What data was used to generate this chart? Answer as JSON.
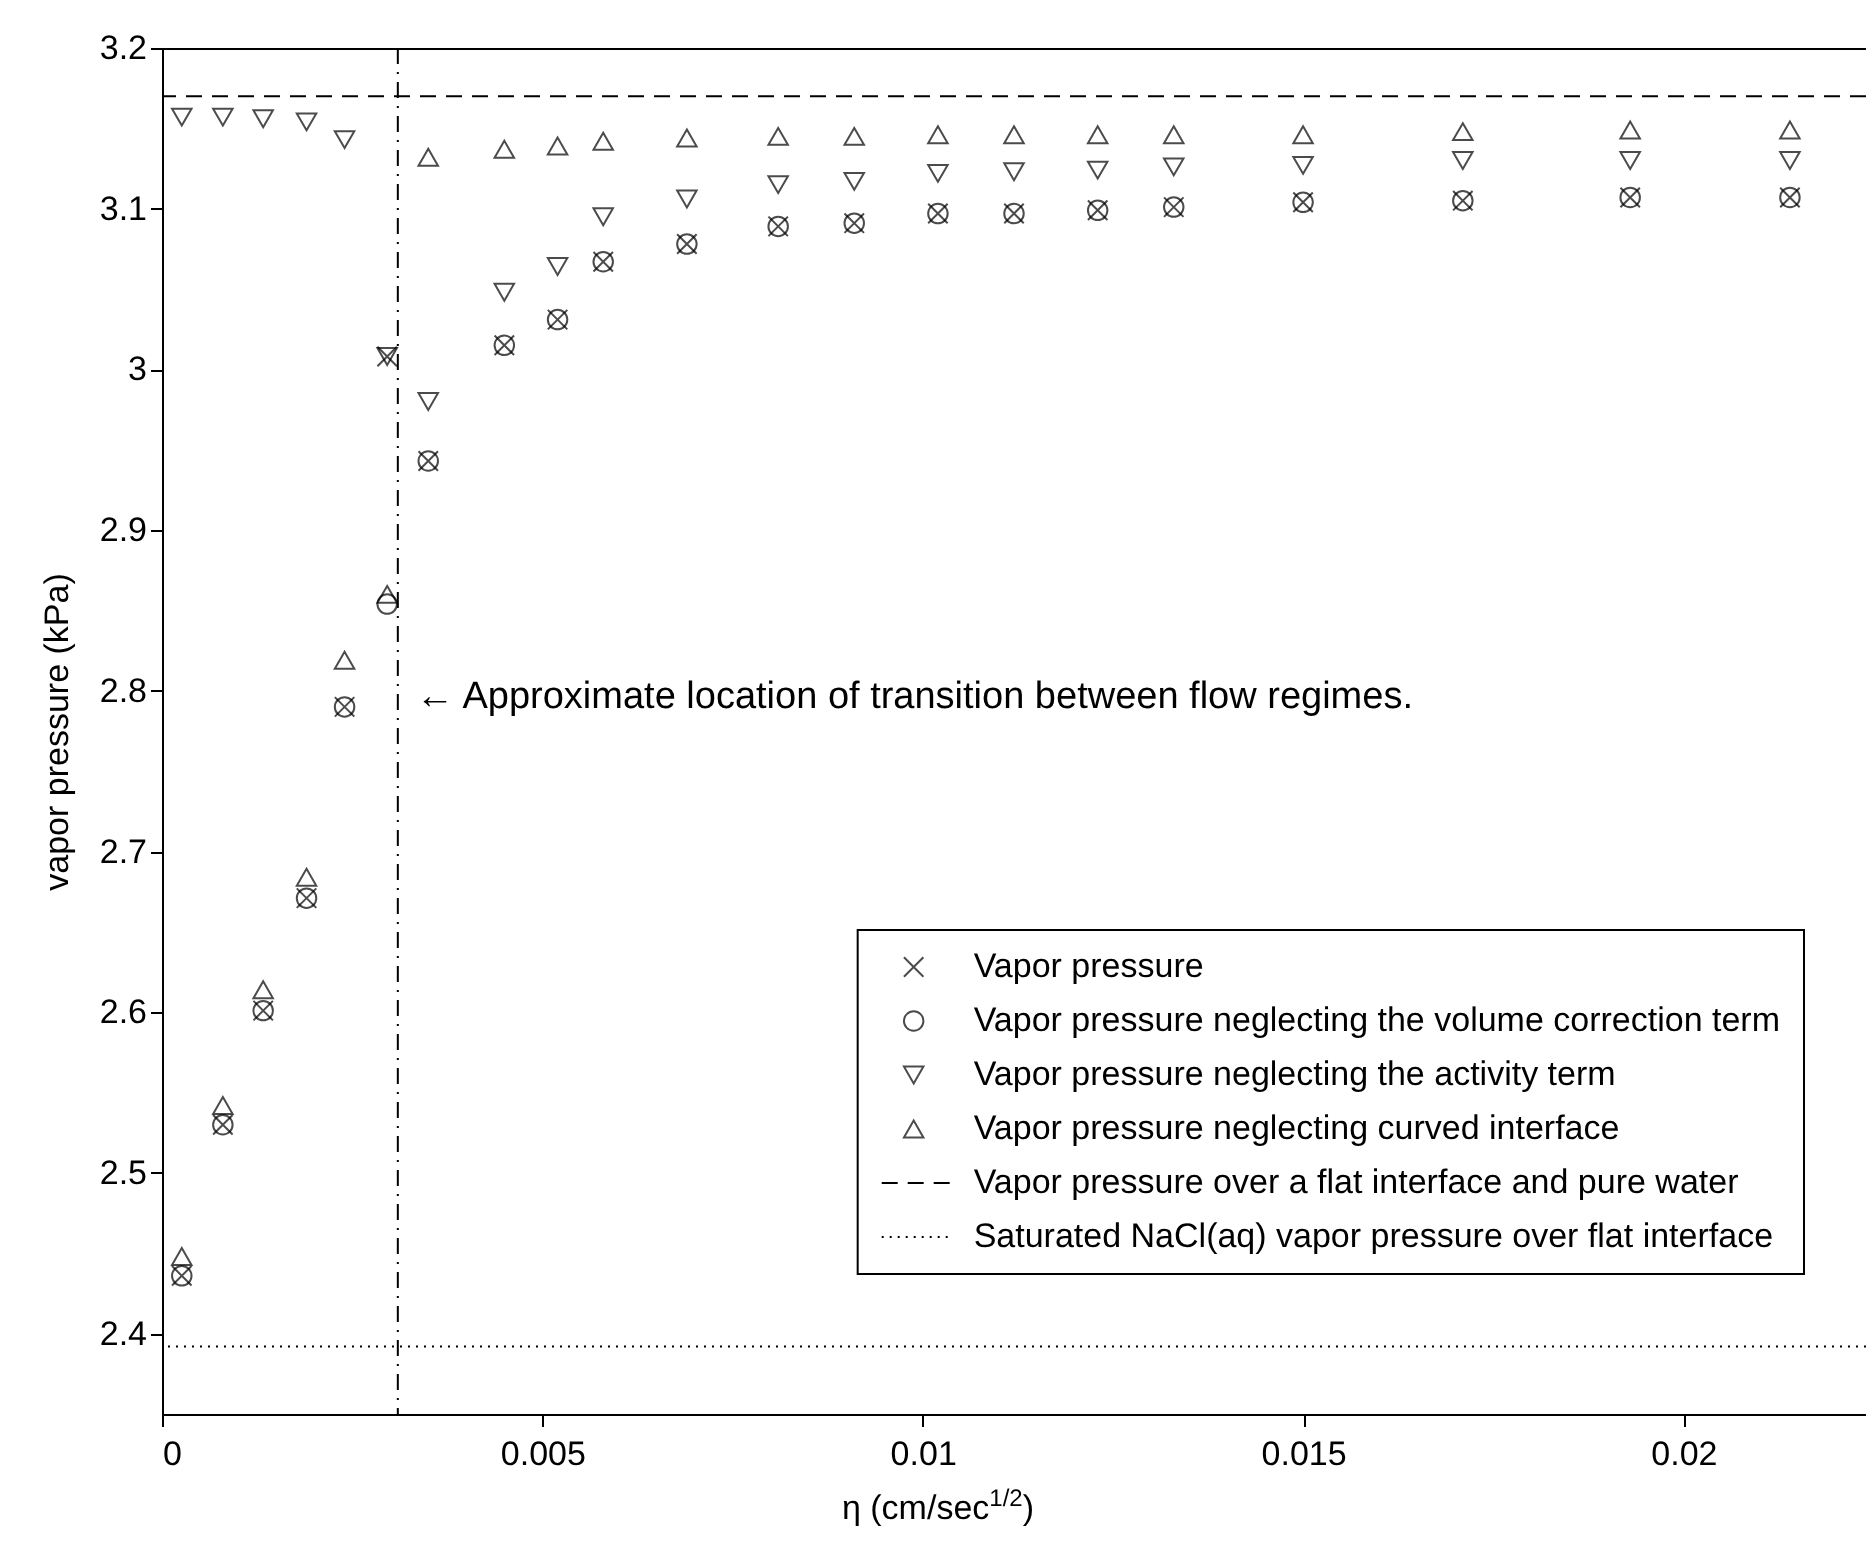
{
  "chart_data": {
    "type": "scatter",
    "xlabel": "η (cm/sec$^{1/2}$)",
    "ylabel": "vapor pressure (kPa)",
    "x": [
      0.00026,
      0.0008,
      0.00133,
      0.0019,
      0.0024,
      0.00296,
      0.0035,
      0.0045,
      0.0052,
      0.0058,
      0.0069,
      0.0081,
      0.0091,
      0.0102,
      0.0112,
      0.0123,
      0.0133,
      0.015,
      0.0171,
      0.0193,
      0.0214
    ],
    "series": [
      {
        "name": "Vapor pressure",
        "color": "#000000",
        "marker": "cross",
        "values": [
          2.436,
          2.53,
          2.601,
          2.671,
          2.79,
          3.008,
          2.943,
          3.015,
          3.031,
          3.067,
          3.078,
          3.089,
          3.091,
          3.097,
          3.097,
          3.099,
          3.101,
          3.104,
          3.105,
          3.107,
          3.107
        ]
      },
      {
        "name": "Vapor pressure neglecting the volume correction term",
        "color": "#000000",
        "marker": "circle",
        "values": [
          2.436,
          2.53,
          2.601,
          2.671,
          2.79,
          2.854,
          2.943,
          3.015,
          3.031,
          3.067,
          3.078,
          3.089,
          3.091,
          3.097,
          3.097,
          3.099,
          3.101,
          3.104,
          3.105,
          3.107,
          3.107
        ]
      },
      {
        "name": "Vapor pressure neglecting the activity term",
        "color": "#000000",
        "marker": "triangle-down",
        "values": [
          3.157,
          3.157,
          3.156,
          3.154,
          3.143,
          3.008,
          2.98,
          3.048,
          3.064,
          3.095,
          3.106,
          3.115,
          3.117,
          3.122,
          3.123,
          3.124,
          3.126,
          3.127,
          3.13,
          3.13,
          3.13
        ]
      },
      {
        "name": "Vapor pressure neglecting curved interface",
        "color": "#000000",
        "marker": "triangle",
        "values": [
          2.448,
          2.542,
          2.614,
          2.684,
          2.819,
          2.86,
          3.132,
          3.137,
          3.139,
          3.142,
          3.144,
          3.145,
          3.145,
          3.146,
          3.146,
          3.146,
          3.146,
          3.146,
          3.148,
          3.149,
          3.149
        ]
      }
    ],
    "ref_lines": [
      {
        "axis": "y",
        "value": 3.17,
        "label": "Vapor pressure over a flat interface and pure water",
        "line_style": "dashed",
        "color": "#000000"
      },
      {
        "axis": "y",
        "value": 2.392,
        "label": "Saturated NaCl(aq) vapor pressure over flat interface",
        "line_style": "dotted",
        "color": "#000000"
      },
      {
        "axis": "x",
        "value": 0.0031,
        "line_style": "dashdot",
        "color": "#000000"
      }
    ],
    "annotations": [
      "← Approximate location of transition between flow regimes."
    ],
    "xlim": [
      0,
      0.0224
    ],
    "ylim": [
      2.35,
      3.2
    ],
    "xticks": [
      0,
      0.005,
      0.01,
      0.015,
      0.02
    ],
    "yticks": [
      2.4,
      2.5,
      2.6,
      2.7,
      2.8,
      2.9,
      3,
      3.1,
      3.2
    ],
    "grid": false,
    "legend": "bottom right"
  }
}
